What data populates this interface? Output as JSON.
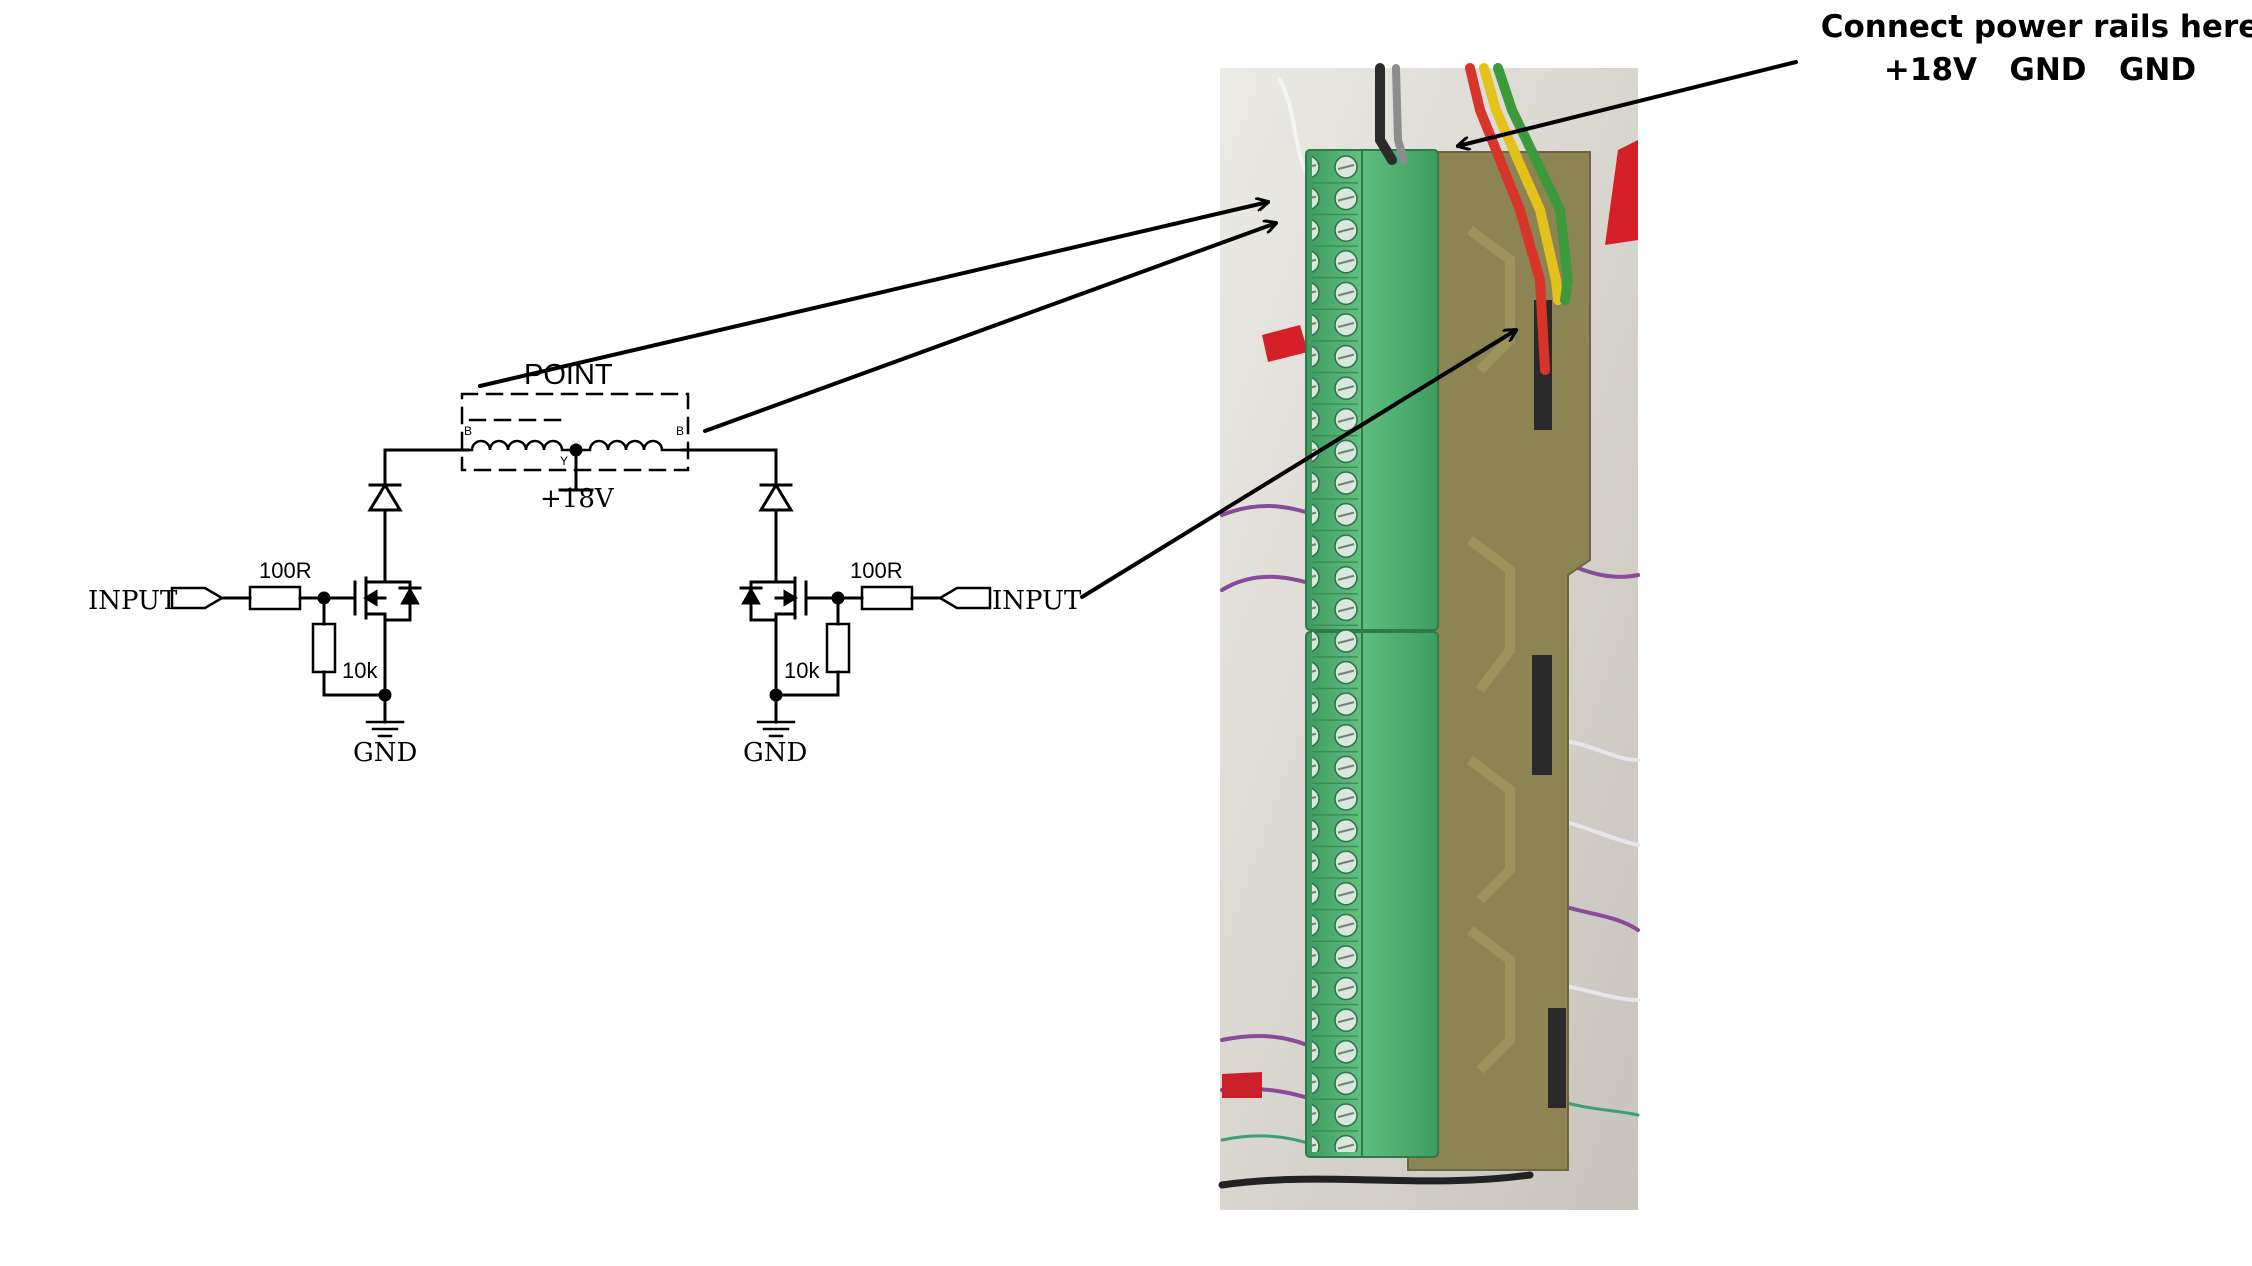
{
  "annotation": {
    "title": "Connect power rails here",
    "rails": [
      "+18V",
      "GND",
      "GND"
    ]
  },
  "schematic": {
    "point_label": "POINT",
    "coil_pin_left": "B",
    "coil_pin_center": "Y",
    "coil_pin_right": "B",
    "supply_label": "+18V",
    "left_input_label": "INPUT",
    "right_input_label": "INPUT",
    "left_gate_resistor": "100R",
    "right_gate_resistor": "100R",
    "left_pulldown": "10k",
    "right_pulldown": "10k",
    "left_ground": "GND",
    "right_ground": "GND"
  },
  "colors": {
    "terminal_green": "#4aa96c",
    "pcb": "#8c8452",
    "wire_red": "#d7352a",
    "wire_yellow": "#e2c21b",
    "wire_green": "#3c9a3c",
    "ink": "#000000"
  }
}
